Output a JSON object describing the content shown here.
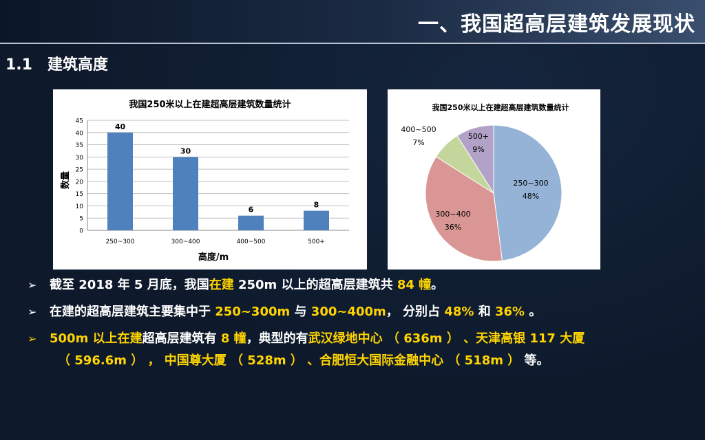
{
  "header": {
    "title": "一、我国超高层建筑发展现状"
  },
  "section": {
    "number": "1.1",
    "title": "建筑高度"
  },
  "chart_data": [
    {
      "type": "bar",
      "title": "我国250米以上在建超高层建筑数量统计",
      "xlabel": "高度/m",
      "ylabel": "数量",
      "categories": [
        "250~300",
        "300~400",
        "400~500",
        "500+"
      ],
      "values": [
        40,
        30,
        6,
        8
      ],
      "data_labels": [
        "40",
        "30",
        "6",
        "8"
      ],
      "ylim": [
        0,
        45
      ],
      "yticks": [
        "0",
        "5",
        "10",
        "15",
        "20",
        "25",
        "30",
        "35",
        "40",
        "45"
      ],
      "grid": true,
      "bar_color": "#4f81bd"
    },
    {
      "type": "pie",
      "title": "我国250米以上在建超高层建筑数量统计",
      "slices": [
        {
          "label": "250~300",
          "pct_label": "48%",
          "value": 48,
          "color": "#95b3d7"
        },
        {
          "label": "300~400",
          "pct_label": "36%",
          "value": 36,
          "color": "#d99694"
        },
        {
          "label": "400~500",
          "pct_label": "7%",
          "value": 7,
          "color": "#c3d69b"
        },
        {
          "label": "500+",
          "pct_label": "9%",
          "value": 9,
          "color": "#b3a2c7"
        }
      ]
    }
  ],
  "bullets": {
    "b1": {
      "p1": "截至 2018 年 5 月底，我国",
      "p2": "在建",
      "p3": " 250m 以上的超高层建筑共 ",
      "p4": "84 幢",
      "p5": "。"
    },
    "b2": {
      "p1": "在建的超高层建筑主要集中于 ",
      "p2": "250~300m",
      "p3": " 与 ",
      "p4": "300~400m",
      "p5": "， 分别占 ",
      "p6": "48%",
      "p7": " 和 ",
      "p8": "36%",
      "p9": " 。"
    },
    "b3": {
      "p1": "500m 以上在建",
      "p2": "超高层建筑有 ",
      "p3": "8 幢",
      "p4": "，典型的有",
      "p5": "武汉绿地中心 （ 636m ） 、天津高银 117 大厦",
      "p6": "（ 596.6m ） ， 中国尊大厦 （ 528m ） 、合肥恒大国际金融中心 （ 518m ）",
      "p7": " 等。"
    }
  },
  "arrow_glyph": "➢"
}
